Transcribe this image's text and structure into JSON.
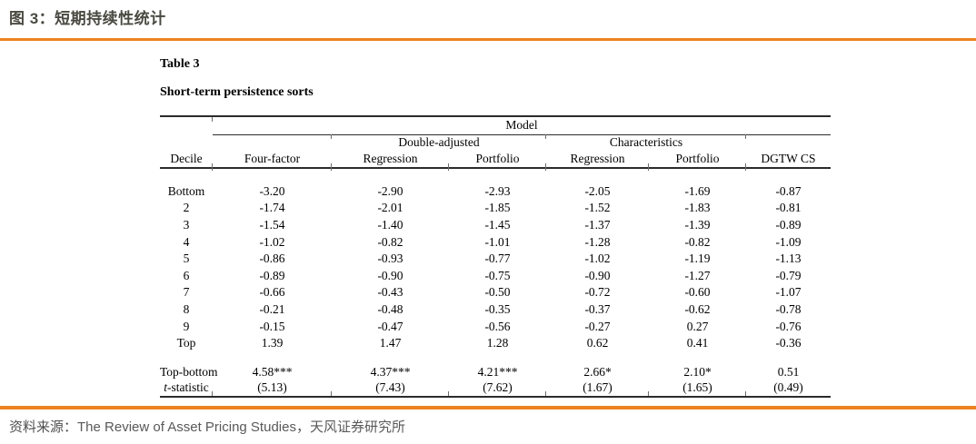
{
  "colors": {
    "accent": "#ED8220"
  },
  "header": {
    "title": "图 3：短期持续性统计"
  },
  "table": {
    "caption": "Table 3",
    "subcaption": "Short-term persistence sorts",
    "model_header": "Model",
    "group_headers": [
      "Double-adjusted",
      "Characteristics"
    ],
    "columns": [
      "Decile",
      "Four-factor",
      "Regression",
      "Portfolio",
      "Regression",
      "Portfolio",
      "DGTW CS"
    ],
    "rows": [
      {
        "label": "Bottom",
        "values": [
          "-3.20",
          "-2.90",
          "-2.93",
          "-2.05",
          "-1.69",
          "-0.87"
        ]
      },
      {
        "label": "2",
        "values": [
          "-1.74",
          "-2.01",
          "-1.85",
          "-1.52",
          "-1.83",
          "-0.81"
        ]
      },
      {
        "label": "3",
        "values": [
          "-1.54",
          "-1.40",
          "-1.45",
          "-1.37",
          "-1.39",
          "-0.89"
        ]
      },
      {
        "label": "4",
        "values": [
          "-1.02",
          "-0.82",
          "-1.01",
          "-1.28",
          "-0.82",
          "-1.09"
        ]
      },
      {
        "label": "5",
        "values": [
          "-0.86",
          "-0.93",
          "-0.77",
          "-1.02",
          "-1.19",
          "-1.13"
        ]
      },
      {
        "label": "6",
        "values": [
          "-0.89",
          "-0.90",
          "-0.75",
          "-0.90",
          "-1.27",
          "-0.79"
        ]
      },
      {
        "label": "7",
        "values": [
          "-0.66",
          "-0.43",
          "-0.50",
          "-0.72",
          "-0.60",
          "-1.07"
        ]
      },
      {
        "label": "8",
        "values": [
          "-0.21",
          "-0.48",
          "-0.35",
          "-0.37",
          "-0.62",
          "-0.78"
        ]
      },
      {
        "label": "9",
        "values": [
          "-0.15",
          "-0.47",
          "-0.56",
          "-0.27",
          "0.27",
          "-0.76"
        ]
      },
      {
        "label": "Top",
        "values": [
          "1.39",
          "1.47",
          "1.28",
          "0.62",
          "0.41",
          "-0.36"
        ]
      }
    ],
    "summary": {
      "top_bottom": {
        "label": "Top-bottom",
        "values": [
          "4.58***",
          "4.37***",
          "4.21***",
          "2.66*",
          "2.10*",
          "0.51"
        ]
      },
      "t_stat": {
        "label_italic": "t",
        "label_rest": "-statistic",
        "values": [
          "(5.13)",
          "(7.43)",
          "(7.62)",
          "(1.67)",
          "(1.65)",
          "(0.49)"
        ]
      }
    }
  },
  "footer": {
    "source_label": "资料来源：",
    "source_text": "The Review of Asset Pricing Studies，天风证券研究所"
  }
}
